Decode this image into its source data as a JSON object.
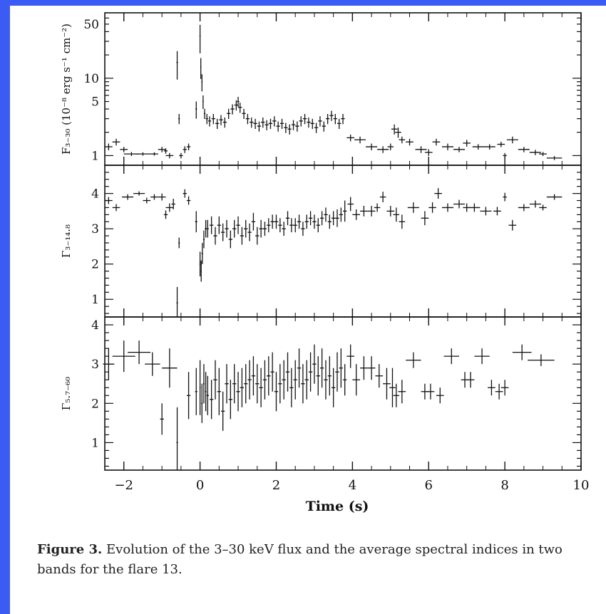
{
  "colors": {
    "frame": "#3b5bf5",
    "ink": "#111111",
    "background": "#ffffff"
  },
  "caption": {
    "label": "Figure 3.",
    "text": " Evolution of the 3–30 keV flux and the average spectral indices in two bands for the flare 13."
  },
  "chart_data": [
    {
      "type": "scatter",
      "panel": "flux",
      "ylabel": "F₃₋₃₀ (10⁻⁸ erg s⁻¹ cm⁻²)",
      "yscale": "log",
      "ylim": [
        0.75,
        70
      ],
      "xlim": [
        -2.5,
        10
      ],
      "yticks": [
        1,
        5,
        10,
        50
      ],
      "yticklabels": [
        "1",
        "5",
        "10",
        "50"
      ],
      "series": [
        {
          "x": [
            -2.4,
            -2.2,
            -2.0,
            -1.8,
            -1.5,
            -1.2,
            -1.0,
            -0.9,
            -0.8,
            -0.6,
            -0.55,
            -0.5,
            -0.4,
            -0.3,
            -0.1,
            0.0,
            0.02,
            0.05,
            0.08,
            0.12,
            0.18,
            0.25,
            0.35,
            0.45,
            0.55,
            0.65,
            0.75,
            0.85,
            0.95,
            1.0,
            1.05,
            1.15,
            1.25,
            1.35,
            1.45,
            1.55,
            1.65,
            1.75,
            1.85,
            1.95,
            2.05,
            2.15,
            2.25,
            2.35,
            2.45,
            2.55,
            2.65,
            2.75,
            2.85,
            2.95,
            3.05,
            3.15,
            3.25,
            3.35,
            3.45,
            3.55,
            3.65,
            3.75,
            3.95,
            4.2,
            4.5,
            4.8,
            5.0,
            5.1,
            5.2,
            5.3,
            5.5,
            5.8,
            6.0,
            6.2,
            6.5,
            6.8,
            7.0,
            7.3,
            7.6,
            7.9,
            8.0,
            8.2,
            8.5,
            8.8,
            9.0,
            9.3
          ],
          "y": [
            1.3,
            1.5,
            1.2,
            1.05,
            1.05,
            1.05,
            1.2,
            1.15,
            1.0,
            16,
            3.0,
            1.0,
            1.2,
            1.3,
            4.0,
            35,
            14,
            9,
            5,
            3.5,
            3.0,
            2.8,
            3.0,
            2.6,
            2.9,
            2.7,
            3.5,
            4.0,
            4.5,
            5.0,
            4.2,
            3.5,
            3.0,
            2.7,
            2.6,
            2.4,
            2.7,
            2.5,
            2.6,
            2.8,
            2.4,
            2.6,
            2.3,
            2.2,
            2.5,
            2.4,
            2.8,
            3.0,
            2.7,
            2.6,
            2.3,
            2.8,
            2.4,
            3.0,
            3.3,
            3.0,
            2.6,
            3.0,
            1.7,
            1.6,
            1.3,
            1.2,
            1.3,
            2.2,
            2.0,
            1.6,
            1.5,
            1.2,
            1.1,
            1.5,
            1.3,
            1.2,
            1.45,
            1.3,
            1.3,
            1.4,
            1.0,
            1.6,
            1.2,
            1.1,
            1.05,
            0.93
          ],
          "xerr": [
            0.1,
            0.1,
            0.1,
            0.2,
            0.2,
            0.1,
            0.1,
            0.05,
            0.1,
            0.02,
            0.02,
            0.05,
            0.05,
            0.05,
            0.02,
            0.01,
            0.01,
            0.015,
            0.015,
            0.02,
            0.03,
            0.04,
            0.05,
            0.05,
            0.05,
            0.05,
            0.05,
            0.05,
            0.05,
            0.03,
            0.05,
            0.05,
            0.05,
            0.05,
            0.05,
            0.05,
            0.05,
            0.05,
            0.05,
            0.05,
            0.05,
            0.05,
            0.05,
            0.05,
            0.05,
            0.05,
            0.05,
            0.05,
            0.05,
            0.05,
            0.05,
            0.05,
            0.05,
            0.05,
            0.05,
            0.05,
            0.05,
            0.05,
            0.1,
            0.15,
            0.15,
            0.15,
            0.08,
            0.08,
            0.08,
            0.08,
            0.1,
            0.15,
            0.1,
            0.1,
            0.15,
            0.15,
            0.1,
            0.15,
            0.15,
            0.1,
            0.05,
            0.15,
            0.15,
            0.15,
            0.1,
            0.2
          ],
          "yerr_frac": [
            0.1,
            0.1,
            0.08,
            0.06,
            0.05,
            0.05,
            0.08,
            0.08,
            0.08,
            0.4,
            0.15,
            0.08,
            0.1,
            0.1,
            0.25,
            0.4,
            0.3,
            0.25,
            0.2,
            0.15,
            0.15,
            0.15,
            0.15,
            0.15,
            0.15,
            0.15,
            0.15,
            0.15,
            0.15,
            0.15,
            0.15,
            0.15,
            0.15,
            0.15,
            0.15,
            0.15,
            0.15,
            0.15,
            0.15,
            0.15,
            0.15,
            0.15,
            0.15,
            0.15,
            0.15,
            0.15,
            0.15,
            0.15,
            0.15,
            0.15,
            0.15,
            0.15,
            0.15,
            0.15,
            0.15,
            0.15,
            0.15,
            0.15,
            0.1,
            0.1,
            0.1,
            0.1,
            0.1,
            0.15,
            0.15,
            0.1,
            0.1,
            0.1,
            0.1,
            0.1,
            0.1,
            0.08,
            0.1,
            0.08,
            0.08,
            0.08,
            0.08,
            0.1,
            0.08,
            0.08,
            0.06,
            0.06
          ]
        }
      ]
    },
    {
      "type": "scatter",
      "panel": "gamma_3_14.8",
      "ylabel": "Γ₃₋₁₄.₈",
      "ylim": [
        0.5,
        4.8
      ],
      "xlim": [
        -2.5,
        10
      ],
      "yticks": [
        1,
        2,
        3,
        4
      ],
      "yticklabels": [
        "1",
        "2",
        "3",
        "4"
      ],
      "series": [
        {
          "x": [
            -2.4,
            -2.2,
            -1.9,
            -1.6,
            -1.4,
            -1.2,
            -1.0,
            -0.9,
            -0.8,
            -0.7,
            -0.6,
            -0.55,
            -0.4,
            -0.3,
            -0.1,
            0.0,
            0.03,
            0.06,
            0.1,
            0.15,
            0.2,
            0.3,
            0.4,
            0.5,
            0.6,
            0.7,
            0.8,
            0.9,
            1.0,
            1.1,
            1.2,
            1.3,
            1.4,
            1.5,
            1.6,
            1.7,
            1.8,
            1.9,
            2.0,
            2.1,
            2.2,
            2.3,
            2.4,
            2.5,
            2.6,
            2.7,
            2.8,
            2.9,
            3.0,
            3.1,
            3.2,
            3.3,
            3.4,
            3.5,
            3.6,
            3.7,
            3.8,
            3.95,
            4.1,
            4.3,
            4.5,
            4.65,
            4.8,
            5.0,
            5.15,
            5.3,
            5.6,
            5.9,
            6.1,
            6.25,
            6.5,
            6.8,
            7.0,
            7.2,
            7.5,
            7.8,
            8.0,
            8.2,
            8.5,
            8.8,
            9.0,
            9.3
          ],
          "y": [
            3.8,
            3.6,
            3.9,
            4.0,
            3.8,
            3.9,
            3.9,
            3.4,
            3.6,
            3.7,
            0.9,
            2.6,
            4.0,
            3.8,
            3.2,
            2.0,
            1.8,
            2.3,
            2.7,
            3.0,
            3.0,
            3.1,
            2.8,
            3.1,
            2.9,
            3.0,
            2.7,
            3.0,
            3.1,
            2.8,
            3.0,
            2.9,
            3.2,
            2.8,
            3.0,
            3.0,
            3.1,
            3.2,
            3.2,
            3.1,
            3.0,
            3.3,
            3.1,
            3.1,
            3.2,
            3.0,
            3.2,
            3.3,
            3.2,
            3.1,
            3.3,
            3.4,
            3.2,
            3.3,
            3.3,
            3.4,
            3.5,
            3.7,
            3.4,
            3.5,
            3.5,
            3.6,
            3.9,
            3.5,
            3.4,
            3.2,
            3.6,
            3.3,
            3.6,
            4.0,
            3.6,
            3.7,
            3.6,
            3.6,
            3.5,
            3.5,
            3.9,
            3.1,
            3.6,
            3.7,
            3.6,
            3.9
          ],
          "xerr": [
            0.1,
            0.1,
            0.15,
            0.15,
            0.1,
            0.1,
            0.1,
            0.05,
            0.1,
            0.05,
            0.02,
            0.02,
            0.05,
            0.05,
            0.03,
            0.01,
            0.01,
            0.02,
            0.02,
            0.03,
            0.03,
            0.05,
            0.05,
            0.05,
            0.05,
            0.05,
            0.05,
            0.05,
            0.05,
            0.05,
            0.05,
            0.05,
            0.05,
            0.05,
            0.05,
            0.05,
            0.05,
            0.05,
            0.05,
            0.05,
            0.05,
            0.05,
            0.05,
            0.05,
            0.05,
            0.05,
            0.05,
            0.05,
            0.05,
            0.05,
            0.05,
            0.05,
            0.05,
            0.05,
            0.05,
            0.05,
            0.05,
            0.08,
            0.1,
            0.1,
            0.1,
            0.08,
            0.08,
            0.1,
            0.08,
            0.08,
            0.15,
            0.1,
            0.1,
            0.1,
            0.15,
            0.15,
            0.1,
            0.15,
            0.15,
            0.1,
            0.05,
            0.1,
            0.15,
            0.15,
            0.1,
            0.2
          ],
          "yerr": [
            0.1,
            0.1,
            0.08,
            0.06,
            0.08,
            0.08,
            0.1,
            0.12,
            0.12,
            0.15,
            0.45,
            0.15,
            0.12,
            0.12,
            0.3,
            0.35,
            0.3,
            0.3,
            0.25,
            0.25,
            0.25,
            0.25,
            0.25,
            0.25,
            0.25,
            0.25,
            0.25,
            0.25,
            0.25,
            0.25,
            0.25,
            0.25,
            0.25,
            0.25,
            0.25,
            0.2,
            0.2,
            0.2,
            0.2,
            0.2,
            0.2,
            0.2,
            0.2,
            0.2,
            0.2,
            0.2,
            0.2,
            0.2,
            0.2,
            0.2,
            0.2,
            0.2,
            0.2,
            0.2,
            0.25,
            0.2,
            0.3,
            0.2,
            0.15,
            0.15,
            0.15,
            0.12,
            0.15,
            0.15,
            0.2,
            0.2,
            0.15,
            0.2,
            0.15,
            0.15,
            0.12,
            0.12,
            0.12,
            0.12,
            0.12,
            0.12,
            0.12,
            0.15,
            0.1,
            0.1,
            0.08,
            0.08
          ]
        }
      ]
    },
    {
      "type": "scatter",
      "panel": "gamma_5.7_60",
      "ylabel": "Γ₅.₇₋₆₀",
      "ylim": [
        0.3,
        4.2
      ],
      "xlim": [
        -2.5,
        10
      ],
      "xlabel": "Time (s)",
      "xticks": [
        -2,
        0,
        2,
        4,
        6,
        8,
        10
      ],
      "xticklabels": [
        "−2",
        "0",
        "2",
        "4",
        "6",
        "8",
        "10"
      ],
      "yticks": [
        1,
        2,
        3,
        4
      ],
      "yticklabels": [
        "1",
        "2",
        "3",
        "4"
      ],
      "series": [
        {
          "x": [
            -2.4,
            -2.0,
            -1.6,
            -1.25,
            -1.0,
            -0.8,
            -0.6,
            -0.3,
            -0.1,
            0.0,
            0.05,
            0.1,
            0.15,
            0.2,
            0.3,
            0.4,
            0.5,
            0.6,
            0.7,
            0.8,
            0.9,
            1.0,
            1.1,
            1.2,
            1.3,
            1.4,
            1.5,
            1.6,
            1.7,
            1.8,
            1.9,
            2.0,
            2.1,
            2.2,
            2.3,
            2.4,
            2.5,
            2.6,
            2.7,
            2.8,
            2.9,
            3.0,
            3.1,
            3.2,
            3.3,
            3.4,
            3.5,
            3.6,
            3.7,
            3.8,
            3.95,
            4.1,
            4.3,
            4.5,
            4.7,
            4.9,
            5.05,
            5.15,
            5.3,
            5.6,
            5.9,
            6.05,
            6.3,
            6.6,
            6.95,
            7.1,
            7.4,
            7.65,
            7.85,
            8.0,
            8.45,
            8.95
          ],
          "y": [
            3.0,
            3.2,
            3.3,
            3.0,
            1.6,
            2.9,
            1.0,
            2.2,
            2.3,
            2.4,
            2.0,
            2.5,
            2.3,
            2.2,
            2.1,
            2.6,
            2.3,
            1.8,
            2.5,
            2.1,
            2.5,
            2.3,
            2.4,
            2.5,
            2.6,
            2.7,
            2.5,
            2.4,
            2.6,
            2.7,
            2.8,
            2.3,
            2.5,
            2.6,
            2.8,
            2.4,
            2.6,
            2.9,
            2.5,
            2.6,
            2.8,
            3.0,
            2.7,
            2.9,
            2.6,
            2.7,
            2.4,
            2.8,
            2.9,
            2.6,
            3.2,
            2.6,
            2.9,
            2.9,
            2.7,
            2.5,
            2.4,
            2.2,
            2.3,
            3.1,
            2.3,
            2.3,
            2.2,
            3.2,
            2.6,
            2.6,
            3.2,
            2.4,
            2.3,
            2.4,
            3.3,
            3.1
          ],
          "xerr": [
            0.15,
            0.3,
            0.3,
            0.2,
            0.05,
            0.2,
            0.02,
            0.05,
            0.03,
            0.01,
            0.02,
            0.02,
            0.02,
            0.03,
            0.05,
            0.05,
            0.05,
            0.05,
            0.05,
            0.05,
            0.05,
            0.05,
            0.05,
            0.05,
            0.05,
            0.05,
            0.05,
            0.05,
            0.05,
            0.05,
            0.05,
            0.05,
            0.05,
            0.05,
            0.05,
            0.05,
            0.05,
            0.05,
            0.05,
            0.05,
            0.05,
            0.05,
            0.05,
            0.05,
            0.05,
            0.05,
            0.05,
            0.05,
            0.05,
            0.05,
            0.1,
            0.1,
            0.1,
            0.1,
            0.1,
            0.1,
            0.08,
            0.08,
            0.1,
            0.2,
            0.1,
            0.1,
            0.1,
            0.2,
            0.1,
            0.1,
            0.2,
            0.1,
            0.1,
            0.1,
            0.25,
            0.35
          ],
          "yerr": [
            0.4,
            0.4,
            0.3,
            0.3,
            0.4,
            0.5,
            0.9,
            0.6,
            0.6,
            0.7,
            0.5,
            0.5,
            0.5,
            0.5,
            0.5,
            0.5,
            0.6,
            0.5,
            0.5,
            0.5,
            0.5,
            0.5,
            0.5,
            0.5,
            0.5,
            0.5,
            0.5,
            0.5,
            0.5,
            0.5,
            0.5,
            0.5,
            0.5,
            0.5,
            0.5,
            0.5,
            0.5,
            0.5,
            0.5,
            0.5,
            0.5,
            0.5,
            0.5,
            0.5,
            0.5,
            0.5,
            0.5,
            0.5,
            0.5,
            0.4,
            0.3,
            0.4,
            0.3,
            0.3,
            0.3,
            0.4,
            0.5,
            0.3,
            0.3,
            0.2,
            0.2,
            0.2,
            0.2,
            0.2,
            0.2,
            0.2,
            0.2,
            0.2,
            0.2,
            0.2,
            0.2,
            0.15
          ]
        }
      ]
    }
  ]
}
